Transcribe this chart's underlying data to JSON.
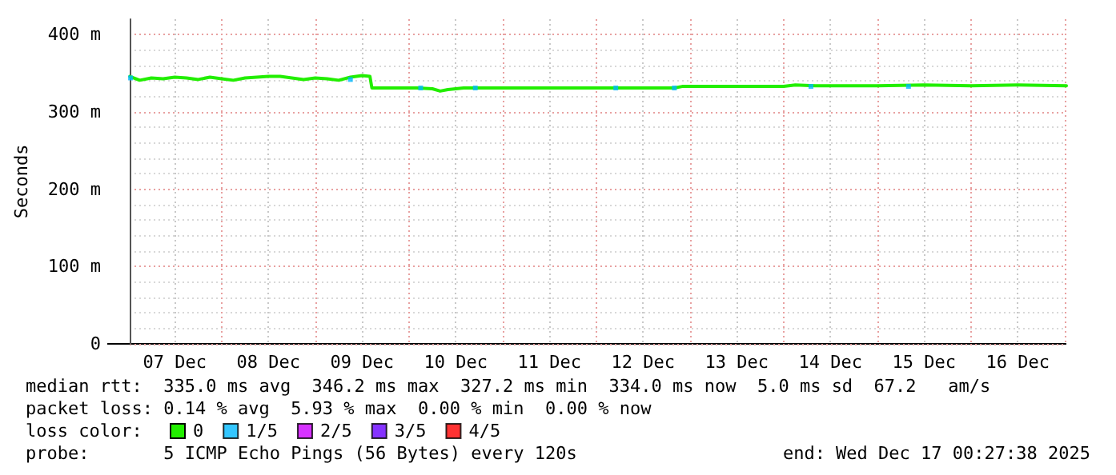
{
  "chart_data": {
    "type": "line",
    "ylabel": "Seconds",
    "xlim": [
      "2025-12-07T00:27",
      "2025-12-17T00:27"
    ],
    "xticks": [
      {
        "value": "2025-12-07T12:00",
        "label": "07 Dec"
      },
      {
        "value": "2025-12-08T00:00",
        "label": null
      },
      {
        "value": "2025-12-08T12:00",
        "label": "08 Dec"
      },
      {
        "value": "2025-12-09T00:00",
        "label": null
      },
      {
        "value": "2025-12-09T12:00",
        "label": "09 Dec"
      },
      {
        "value": "2025-12-10T00:00",
        "label": null
      },
      {
        "value": "2025-12-10T12:00",
        "label": "10 Dec"
      },
      {
        "value": "2025-12-11T00:00",
        "label": null
      },
      {
        "value": "2025-12-11T12:00",
        "label": "11 Dec"
      },
      {
        "value": "2025-12-12T00:00",
        "label": null
      },
      {
        "value": "2025-12-12T12:00",
        "label": "12 Dec"
      },
      {
        "value": "2025-12-13T00:00",
        "label": null
      },
      {
        "value": "2025-12-13T12:00",
        "label": "13 Dec"
      },
      {
        "value": "2025-12-14T00:00",
        "label": null
      },
      {
        "value": "2025-12-14T12:00",
        "label": "14 Dec"
      },
      {
        "value": "2025-12-15T00:00",
        "label": null
      },
      {
        "value": "2025-12-15T12:00",
        "label": "15 Dec"
      },
      {
        "value": "2025-12-16T00:00",
        "label": null
      },
      {
        "value": "2025-12-16T12:00",
        "label": "16 Dec"
      },
      {
        "value": "2025-12-17T00:00",
        "label": null
      }
    ],
    "ylim": [
      0,
      420
    ],
    "yticks": [
      0,
      {
        "value": 100,
        "label": "100 m"
      },
      {
        "value": 200,
        "label": "200 m"
      },
      {
        "value": 300,
        "label": "300 m"
      },
      {
        "value": 400,
        "label": "400 m"
      }
    ],
    "grid": true,
    "legend": "bottom left",
    "series": [
      {
        "name": "0",
        "color": "#22ee00",
        "x": [
          "2025-12-07T00:30",
          "2025-12-07T03:00",
          "2025-12-07T06:00",
          "2025-12-07T09:00",
          "2025-12-07T12:00",
          "2025-12-07T15:00",
          "2025-12-07T18:00",
          "2025-12-07T21:00",
          "2025-12-08T00:00",
          "2025-12-08T03:00",
          "2025-12-08T06:00",
          "2025-12-08T09:00",
          "2025-12-08T12:00",
          "2025-12-08T15:00",
          "2025-12-08T18:00",
          "2025-12-08T21:00",
          "2025-12-09T00:00",
          "2025-12-09T03:00",
          "2025-12-09T06:00",
          "2025-12-09T09:00",
          "2025-12-09T12:00",
          "2025-12-09T14:00",
          "2025-12-09T14:30",
          "2025-12-09T20:00",
          "2025-12-10T02:00",
          "2025-12-10T06:00",
          "2025-12-10T08:00",
          "2025-12-10T10:00",
          "2025-12-10T14:00",
          "2025-12-11T00:00",
          "2025-12-11T12:00",
          "2025-12-12T00:00",
          "2025-12-12T12:00",
          "2025-12-12T20:00",
          "2025-12-12T22:00",
          "2025-12-13T12:00",
          "2025-12-14T00:00",
          "2025-12-14T03:00",
          "2025-12-14T08:00",
          "2025-12-15T00:00",
          "2025-12-15T12:00",
          "2025-12-16T00:00",
          "2025-12-16T12:00",
          "2025-12-17T00:27"
        ],
        "values": [
          346,
          341,
          344,
          343,
          345,
          344,
          342,
          345,
          343,
          341,
          344,
          345,
          346,
          346,
          344,
          342,
          344,
          343,
          341,
          345,
          347,
          346,
          331,
          331,
          331,
          330,
          327,
          329,
          331,
          331,
          331,
          331,
          331,
          331,
          333,
          333,
          333,
          335,
          334,
          334,
          335,
          334,
          335,
          334
        ]
      },
      {
        "name": "1/5",
        "type": "scatter",
        "marker": "square",
        "color": "#00b8ff",
        "x": [
          "2025-12-07T00:40",
          "2025-12-09T09:00",
          "2025-12-10T03:00",
          "2025-12-10T17:00",
          "2025-12-12T05:00",
          "2025-12-12T20:00",
          "2025-12-14T07:00",
          "2025-12-15T08:00"
        ],
        "values": [
          344,
          342,
          331,
          331,
          331,
          331,
          333,
          333
        ]
      },
      {
        "name": "2/5",
        "type": "scatter",
        "marker": "square",
        "color": "#cc00ff"
      },
      {
        "name": "3/5",
        "type": "scatter",
        "marker": "square",
        "color": "#6600ff"
      },
      {
        "name": "4/5",
        "type": "scatter",
        "marker": "square",
        "color": "#ff0000"
      }
    ],
    "annotations": [
      "median rtt:  335.0 ms avg  346.2 ms max  327.2 ms min  334.0 ms now  5.0 ms sd  67.2   am/s",
      "packet loss: 0.14 % avg  5.93 % max  0.00 % min  0.00 % now",
      "loss color:",
      "probe:       5 ICMP Echo Pings (56 Bytes) every 120s",
      "end: Wed Dec 17 00:27:38 2025"
    ]
  }
}
